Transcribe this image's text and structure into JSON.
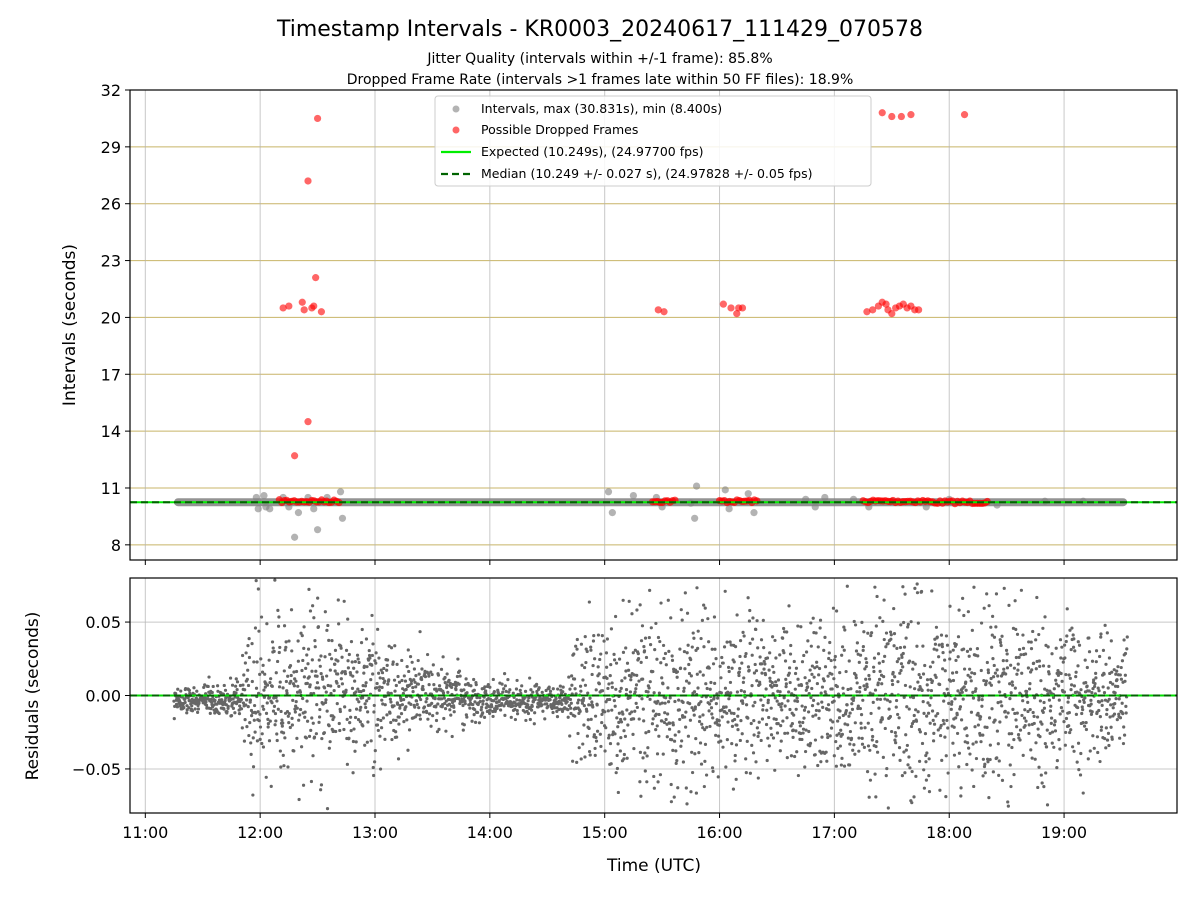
{
  "chart_data": [
    {
      "type": "scatter",
      "title": "Timestamp Intervals - KR0003_20240617_111429_070578",
      "subtitle_lines": [
        "Jitter Quality (intervals within +/-1 frame): 85.8%",
        "Dropped Frame Rate (intervals >1 frames late within 50 FF files): 18.9%"
      ],
      "ylabel": "Intervals (seconds)",
      "xlabel": "",
      "xlim": [
        "10:52",
        "19:59"
      ],
      "ylim": [
        7.2,
        32
      ],
      "x_ticks": [
        "11:00",
        "12:00",
        "13:00",
        "14:00",
        "15:00",
        "16:00",
        "17:00",
        "18:00",
        "19:00"
      ],
      "y_ticks": [
        8,
        11,
        14,
        17,
        20,
        23,
        26,
        29,
        32
      ],
      "grid": "x and y",
      "legend_position": "top-center",
      "legend": [
        "Intervals, max (30.831s), min (8.400s)",
        "Possible Dropped Frames",
        "Expected (10.249s), (24.97700 fps)",
        "Median (10.249 +/- 0.027 s), (24.97828 +/- 0.05 fps)"
      ],
      "expected_interval": 10.249,
      "median_interval": 10.249,
      "colors": {
        "intervals": "#808080",
        "dropped": "#ff0000",
        "expected": "#00ee00",
        "median": "#006400",
        "hgrid": "#c8b468"
      },
      "interval_band": {
        "start": "11:15",
        "end": "19:33",
        "y": 10.249
      },
      "interval_outliers": [
        {
          "x": "11:58",
          "y": 10.5
        },
        {
          "x": "11:59",
          "y": 9.9
        },
        {
          "x": "12:02",
          "y": 10.6
        },
        {
          "x": "12:03",
          "y": 10.0
        },
        {
          "x": "12:05",
          "y": 9.9
        },
        {
          "x": "12:12",
          "y": 10.5
        },
        {
          "x": "12:15",
          "y": 10.0
        },
        {
          "x": "12:18",
          "y": 8.4
        },
        {
          "x": "12:20",
          "y": 9.7
        },
        {
          "x": "12:25",
          "y": 10.5
        },
        {
          "x": "12:28",
          "y": 9.9
        },
        {
          "x": "12:30",
          "y": 8.8
        },
        {
          "x": "12:35",
          "y": 10.5
        },
        {
          "x": "12:42",
          "y": 10.8
        },
        {
          "x": "12:43",
          "y": 9.4
        },
        {
          "x": "15:02",
          "y": 10.8
        },
        {
          "x": "15:04",
          "y": 9.7
        },
        {
          "x": "15:15",
          "y": 10.6
        },
        {
          "x": "15:27",
          "y": 10.5
        },
        {
          "x": "15:30",
          "y": 10.0
        },
        {
          "x": "15:45",
          "y": 10.2
        },
        {
          "x": "15:47",
          "y": 9.4
        },
        {
          "x": "15:48",
          "y": 11.1
        },
        {
          "x": "16:03",
          "y": 10.9
        },
        {
          "x": "16:05",
          "y": 9.9
        },
        {
          "x": "16:15",
          "y": 10.7
        },
        {
          "x": "16:18",
          "y": 9.7
        },
        {
          "x": "16:45",
          "y": 10.4
        },
        {
          "x": "16:50",
          "y": 10.0
        },
        {
          "x": "16:55",
          "y": 10.5
        },
        {
          "x": "17:10",
          "y": 10.4
        },
        {
          "x": "17:18",
          "y": 10.0
        },
        {
          "x": "17:30",
          "y": 10.3
        },
        {
          "x": "17:48",
          "y": 10.0
        },
        {
          "x": "18:00",
          "y": 10.4
        },
        {
          "x": "18:25",
          "y": 10.1
        },
        {
          "x": "18:50",
          "y": 10.3
        },
        {
          "x": "19:10",
          "y": 10.3
        }
      ],
      "dropped_frames": [
        {
          "x": "12:12",
          "y": 20.5
        },
        {
          "x": "12:15",
          "y": 20.6
        },
        {
          "x": "12:18",
          "y": 12.7
        },
        {
          "x": "12:22",
          "y": 20.8
        },
        {
          "x": "12:23",
          "y": 20.4
        },
        {
          "x": "12:25",
          "y": 27.2
        },
        {
          "x": "12:25",
          "y": 14.5
        },
        {
          "x": "12:27",
          "y": 20.5
        },
        {
          "x": "12:28",
          "y": 20.6
        },
        {
          "x": "12:29",
          "y": 22.1
        },
        {
          "x": "12:30",
          "y": 30.5
        },
        {
          "x": "12:32",
          "y": 20.3
        },
        {
          "x": "15:28",
          "y": 20.4
        },
        {
          "x": "15:31",
          "y": 20.3
        },
        {
          "x": "16:02",
          "y": 20.7
        },
        {
          "x": "16:06",
          "y": 20.5
        },
        {
          "x": "16:09",
          "y": 20.2
        },
        {
          "x": "16:10",
          "y": 20.5
        },
        {
          "x": "16:12",
          "y": 20.5
        },
        {
          "x": "17:17",
          "y": 20.3
        },
        {
          "x": "17:20",
          "y": 20.4
        },
        {
          "x": "17:23",
          "y": 20.6
        },
        {
          "x": "17:25",
          "y": 20.8
        },
        {
          "x": "17:27",
          "y": 20.7
        },
        {
          "x": "17:28",
          "y": 20.4
        },
        {
          "x": "17:30",
          "y": 20.2
        },
        {
          "x": "17:32",
          "y": 20.5
        },
        {
          "x": "17:34",
          "y": 20.6
        },
        {
          "x": "17:36",
          "y": 20.7
        },
        {
          "x": "17:38",
          "y": 20.5
        },
        {
          "x": "17:40",
          "y": 20.6
        },
        {
          "x": "17:42",
          "y": 20.4
        },
        {
          "x": "17:44",
          "y": 20.4
        },
        {
          "x": "17:25",
          "y": 30.8
        },
        {
          "x": "17:30",
          "y": 30.6
        },
        {
          "x": "17:35",
          "y": 30.6
        },
        {
          "x": "17:40",
          "y": 30.7
        },
        {
          "x": "18:08",
          "y": 30.7
        }
      ],
      "dropped_band_segments": [
        {
          "start": "12:10",
          "end": "12:42",
          "y": 10.3
        },
        {
          "start": "15:25",
          "end": "15:37",
          "y": 10.3
        },
        {
          "start": "16:00",
          "end": "16:20",
          "y": 10.3
        },
        {
          "start": "17:15",
          "end": "17:50",
          "y": 10.3
        },
        {
          "start": "17:50",
          "end": "18:20",
          "y": 10.25
        }
      ]
    },
    {
      "type": "scatter",
      "ylabel": "Residuals (seconds)",
      "xlabel": "Time (UTC)",
      "xlim": [
        "10:52",
        "19:59"
      ],
      "ylim": [
        -0.08,
        0.08
      ],
      "x_ticks": [
        "11:00",
        "12:00",
        "13:00",
        "14:00",
        "15:00",
        "16:00",
        "17:00",
        "18:00",
        "19:00"
      ],
      "y_ticks": [
        "−0.05",
        "0.00",
        "0.05"
      ],
      "y_tick_values": [
        -0.05,
        0.0,
        0.05
      ],
      "grid": "x and y",
      "residual_zero_line": 0.0,
      "colors": {
        "points": "#666666",
        "zero": "#00dd00",
        "median": "#006400"
      },
      "residual_spread_profile": [
        {
          "x": "11:15",
          "spread": 0.008
        },
        {
          "x": "11:50",
          "spread": 0.012
        },
        {
          "x": "11:55",
          "spread": 0.045
        },
        {
          "x": "12:30",
          "spread": 0.06
        },
        {
          "x": "13:00",
          "spread": 0.04
        },
        {
          "x": "13:30",
          "spread": 0.02
        },
        {
          "x": "14:00",
          "spread": 0.01
        },
        {
          "x": "14:40",
          "spread": 0.01
        },
        {
          "x": "14:45",
          "spread": 0.04
        },
        {
          "x": "15:30",
          "spread": 0.06
        },
        {
          "x": "16:30",
          "spread": 0.05
        },
        {
          "x": "17:30",
          "spread": 0.06
        },
        {
          "x": "18:30",
          "spread": 0.06
        },
        {
          "x": "19:33",
          "spread": 0.035
        }
      ]
    }
  ]
}
